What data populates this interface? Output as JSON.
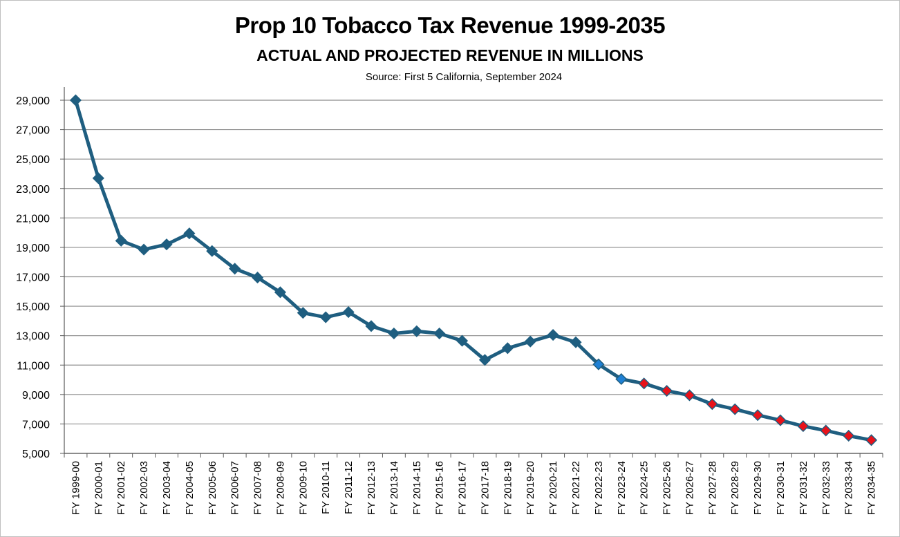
{
  "chart_data": {
    "type": "line",
    "title": "Prop 10 Tobacco Tax Revenue 1999-2035",
    "subtitle": "ACTUAL AND PROJECTED REVENUE IN MILLIONS",
    "source": "Source: First 5 California, September 2024",
    "xlabel": "",
    "ylabel": "",
    "ylim": [
      5000,
      29900
    ],
    "yticks": [
      5000,
      7000,
      9000,
      11000,
      13000,
      15000,
      17000,
      19000,
      21000,
      23000,
      25000,
      27000,
      29000
    ],
    "ytick_labels": [
      "5,000",
      "7,000",
      "9,000",
      "11,000",
      "13,000",
      "15,000",
      "17,000",
      "19,000",
      "21,000",
      "23,000",
      "25,000",
      "27,000",
      "29,000"
    ],
    "grid": true,
    "categories": [
      "FY 1999-00",
      "FY 2000-01",
      "FY 2001-02",
      "FY 2002-03",
      "FY 2003-04",
      "FY 2004-05",
      "FY 2005-06",
      "FY 2006-07",
      "FY 2007-08",
      "FY 2008-09",
      "FY 2009-10",
      "FY 2010-11",
      "FY 2011-12",
      "FY 2012-13",
      "FY 2013-14",
      "FY 2014-15",
      "FY 2015-16",
      "FY 2016-17",
      "FY 2017-18",
      "FY 2018-19",
      "FY 2019-20",
      "FY 2020-21",
      "FY 2021-22",
      "FY 2022-23",
      "FY 2023-24",
      "FY 2024-25",
      "FY 2025-26",
      "FY 2026-27",
      "FY 2027-28",
      "FY 2028-29",
      "FY 2029-30",
      "FY 2030-31",
      "FY 2031-32",
      "FY 2032-33",
      "FY 2033-34",
      "FY 2034-35"
    ],
    "series": [
      {
        "name": "Revenue",
        "color": "#1f5e80",
        "values": [
          29000,
          23700,
          19450,
          18850,
          19200,
          19950,
          18750,
          17550,
          16950,
          15950,
          14550,
          14250,
          14600,
          13650,
          13150,
          13300,
          13150,
          12650,
          11350,
          12150,
          12600,
          13050,
          12550,
          11050,
          10050,
          9750,
          9250,
          8950,
          8350,
          8000,
          7600,
          7250,
          6850,
          6550,
          6200,
          5900
        ]
      }
    ],
    "marker_colors": {
      "actual": "#1f5e80",
      "current": "#1f80d4",
      "projected": "#e8121a"
    },
    "marker_types": [
      "actual",
      "actual",
      "actual",
      "actual",
      "actual",
      "actual",
      "actual",
      "actual",
      "actual",
      "actual",
      "actual",
      "actual",
      "actual",
      "actual",
      "actual",
      "actual",
      "actual",
      "actual",
      "actual",
      "actual",
      "actual",
      "actual",
      "actual",
      "current",
      "current",
      "projected",
      "projected",
      "projected",
      "projected",
      "projected",
      "projected",
      "projected",
      "projected",
      "projected",
      "projected",
      "projected"
    ]
  }
}
